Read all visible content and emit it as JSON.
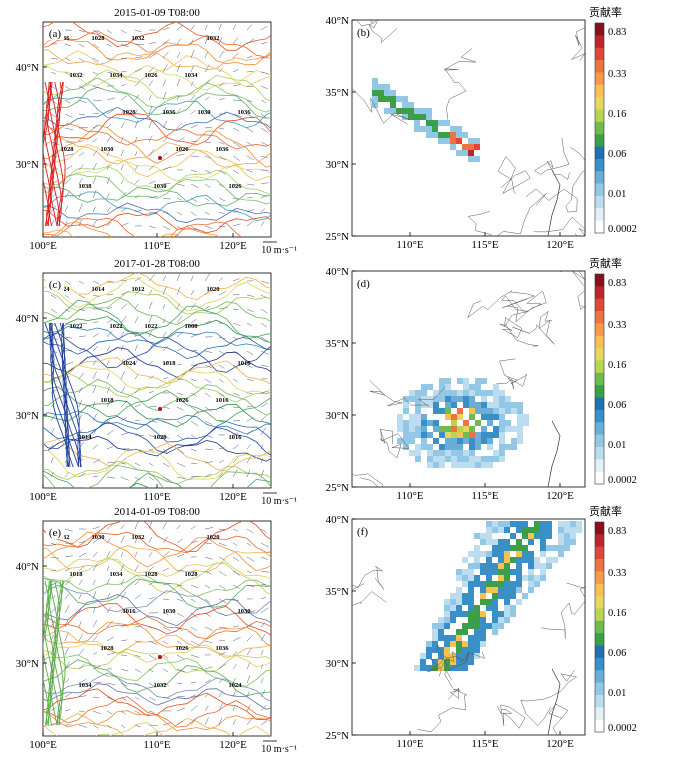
{
  "figure": {
    "rows": [
      {
        "left_title": "2015-01-09 T08:00",
        "left_label": "(a)",
        "right_label": "(b)",
        "wind_unit": "10 m·s⁻¹",
        "left_x_ticks": [
          "100°E",
          "110°E",
          "120°E"
        ],
        "left_y_ticks": [
          "40°N",
          "30°N"
        ],
        "right_x_ticks": [
          "110°E",
          "115°E",
          "120°E"
        ],
        "right_y_ticks": [
          "40°N",
          "35°N",
          "30°N",
          "25°N"
        ],
        "contour_labels": [
          "1036",
          "1034",
          "1036",
          "1036",
          "1038",
          "1032",
          "1034",
          "1036",
          "1030",
          "1030",
          "1032",
          "1032",
          "1028",
          "1026",
          "1026",
          "1028",
          "1026",
          "1030",
          "1028"
        ]
      },
      {
        "left_title": "2017-01-28 T08:00",
        "left_label": "(c)",
        "right_label": "(d)",
        "wind_unit": "10 m·s⁻¹",
        "left_x_ticks": [
          "100°E",
          "110°E",
          "120°E"
        ],
        "left_y_ticks": [
          "40°N",
          "30°N"
        ],
        "right_x_ticks": [
          "110°E",
          "115°E",
          "120°E"
        ],
        "right_y_ticks": [
          "40°N",
          "35°N",
          "30°N",
          "25°N"
        ],
        "contour_labels": [
          "1024",
          "1022",
          "1018",
          "1016",
          "1014",
          "1012",
          "1008",
          "1016",
          "1018",
          "1020",
          "1020",
          "1022",
          "1024",
          "1026",
          "1016",
          "1014",
          "1022"
        ]
      },
      {
        "left_title": "2014-01-09 T08:00",
        "left_label": "(e)",
        "right_label": "(f)",
        "wind_unit": "10 m·s⁻¹",
        "left_x_ticks": [
          "100°E",
          "110°E",
          "120°E"
        ],
        "left_y_ticks": [
          "40°N",
          "30°N"
        ],
        "right_x_ticks": [
          "110°E",
          "115°E",
          "120°E"
        ],
        "right_y_ticks": [
          "40°N",
          "35°N",
          "30°N",
          "25°N"
        ],
        "contour_labels": [
          "1032",
          "1034",
          "1030",
          "1036",
          "1034",
          "1032",
          "1028",
          "1030",
          "1028",
          "1032",
          "1020",
          "1018",
          "1016",
          "1026",
          "1024",
          "1030",
          "1028"
        ]
      }
    ],
    "colorbar": {
      "title": "贡献率",
      "tick_labels": [
        "0.83",
        "0.33",
        "0.16",
        "0.06",
        "0.01",
        "0.0002"
      ],
      "colors": [
        "#8a0f1d",
        "#c2232b",
        "#e2453a",
        "#ef7340",
        "#f59a48",
        "#f7c24d",
        "#e6d95a",
        "#b8d54f",
        "#6fbb52",
        "#3d9e4a",
        "#1f6fb1",
        "#3a8fc7",
        "#6aaed8",
        "#93c7e6",
        "#bcdcef",
        "#e3f0f8",
        "#ffffff"
      ]
    }
  }
}
